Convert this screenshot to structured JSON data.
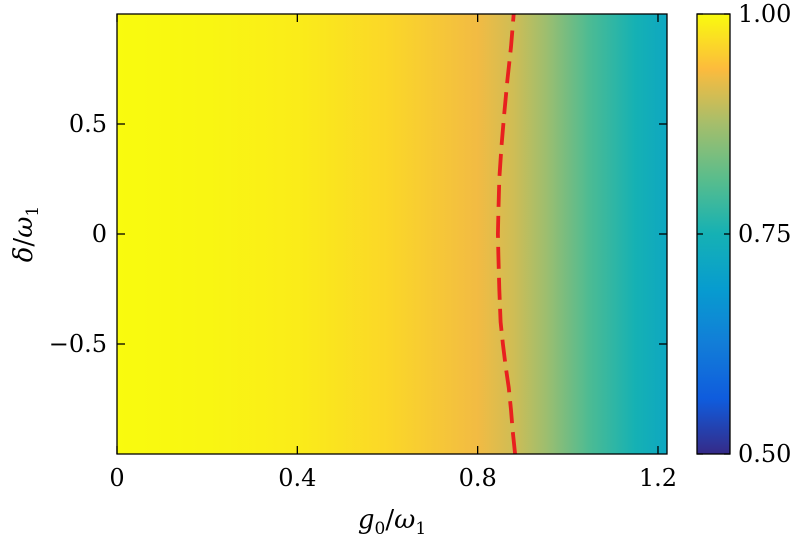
{
  "chart_data": {
    "type": "heatmap",
    "title": "",
    "xlabel": {
      "main": "g",
      "sub": "0",
      "sep": "/",
      "den": "ω",
      "den_sub": "1"
    },
    "ylabel": {
      "main": "δ",
      "sep": "/",
      "den": "ω",
      "den_sub": "1"
    },
    "xlim": [
      0,
      1.22
    ],
    "ylim": [
      -1,
      1
    ],
    "x_ticks": [
      0,
      0.4,
      0.8,
      1.2
    ],
    "x_tick_labels": [
      "0",
      "0.4",
      "0.8",
      "1.2"
    ],
    "y_ticks": [
      0.5,
      0,
      -0.5
    ],
    "y_tick_labels": [
      "0.5",
      "0",
      "−0.5"
    ],
    "colorbar": {
      "range": [
        0.5,
        1.0
      ],
      "ticks": [
        1.0,
        0.75,
        0.5
      ],
      "tick_labels": [
        "1.00",
        "0.75",
        "0.50"
      ],
      "colormap": "parula"
    },
    "grid": false,
    "field_description_by_x": {
      "x": [
        0,
        0.2,
        0.4,
        0.6,
        0.8,
        0.88,
        0.95,
        1.05,
        1.15,
        1.22
      ],
      "value": [
        1.0,
        0.995,
        0.985,
        0.965,
        0.93,
        0.905,
        0.87,
        0.8,
        0.75,
        0.72
      ]
    },
    "series": [
      {
        "type": "dashed-contour",
        "color": "#e8201f",
        "x": [
          0.883,
          0.878,
          0.874,
          0.869,
          0.862,
          0.856,
          0.851,
          0.848,
          0.846,
          0.845,
          0.846,
          0.848,
          0.853,
          0.859,
          0.866,
          0.874,
          0.88
        ],
        "y": [
          -1.0,
          -0.9,
          -0.8,
          -0.7,
          -0.6,
          -0.5,
          -0.4,
          -0.25,
          -0.1,
          0.0,
          0.1,
          0.25,
          0.4,
          0.55,
          0.7,
          0.85,
          1.0
        ]
      }
    ]
  }
}
